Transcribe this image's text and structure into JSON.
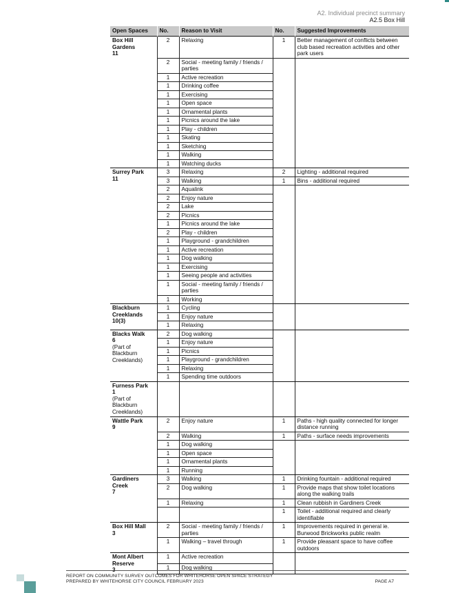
{
  "header": {
    "line1": "A2. Individual precinct summary",
    "line2": "A2.5 Box Hill"
  },
  "columns": [
    "Open Spaces",
    "No.",
    "Reason to Visit",
    "No.",
    "Suggested Improvements"
  ],
  "groups": [
    {
      "name": "Box Hill Gardens",
      "count": "11",
      "sub": "",
      "reasons": [
        [
          "2",
          "Relaxing"
        ],
        [
          "2",
          "Social - meeting family / friends / parties"
        ],
        [
          "1",
          "Active recreation"
        ],
        [
          "1",
          "Drinking coffee"
        ],
        [
          "1",
          "Exercising"
        ],
        [
          "1",
          "Open space"
        ],
        [
          "1",
          "Ornamental plants"
        ],
        [
          "1",
          "Picnics around the lake"
        ],
        [
          "1",
          "Play - children"
        ],
        [
          "1",
          "Skating"
        ],
        [
          "1",
          "Sketching"
        ],
        [
          "1",
          "Walking"
        ],
        [
          "1",
          "Watching ducks"
        ]
      ],
      "improvements": [
        [
          "1",
          "Better management of conflicts between club based recreation activities and other park users"
        ]
      ]
    },
    {
      "name": "Surrey Park",
      "count": "11",
      "sub": "",
      "reasons": [
        [
          "3",
          "Relaxing"
        ],
        [
          "3",
          "Walking"
        ],
        [
          "2",
          "Aqualink"
        ],
        [
          "2",
          "Enjoy nature"
        ],
        [
          "2",
          "Lake"
        ],
        [
          "2",
          "Picnics"
        ],
        [
          "1",
          "Picnics around the lake"
        ],
        [
          "2",
          "Play - children"
        ],
        [
          "1",
          "Playground - grandchildren"
        ],
        [
          "1",
          "Active recreation"
        ],
        [
          "1",
          "Dog walking"
        ],
        [
          "1",
          "Exercising"
        ],
        [
          "1",
          "Seeing people and activities"
        ],
        [
          "1",
          "Social - meeting family / friends / parties"
        ],
        [
          "1",
          "Working"
        ]
      ],
      "improvements": [
        [
          "2",
          "Lighting - additional required"
        ],
        [
          "1",
          "Bins - additional required"
        ]
      ]
    },
    {
      "name": "Blackburn Creeklands",
      "count": "10(3)",
      "sub": "",
      "reasons": [
        [
          "1",
          "Cycling"
        ],
        [
          "1",
          "Enjoy nature"
        ],
        [
          "1",
          "Relaxing"
        ]
      ],
      "improvements": []
    },
    {
      "name": "Blacks Walk",
      "count": "6",
      "sub": "(Part of Blackburn Creeklands)",
      "reasons": [
        [
          "2",
          "Dog walking"
        ],
        [
          "1",
          "Enjoy nature"
        ],
        [
          "1",
          "Picnics"
        ],
        [
          "1",
          "Playground - grandchildren"
        ],
        [
          "1",
          "Relaxing"
        ],
        [
          "1",
          "Spending time outdoors"
        ]
      ],
      "improvements": []
    },
    {
      "name": "Furness Park",
      "count": "1",
      "sub": "(Part of Blackburn Creeklands)",
      "reasons": [],
      "improvements": []
    },
    {
      "name": "Wattle Park",
      "count": "9",
      "sub": "",
      "reasons": [
        [
          "2",
          "Enjoy nature"
        ],
        [
          "2",
          "Walking"
        ],
        [
          "1",
          "Dog walking"
        ],
        [
          "1",
          "Open space"
        ],
        [
          "1",
          "Ornamental plants"
        ],
        [
          "1",
          "Running"
        ]
      ],
      "improvements": [
        [
          "1",
          "Paths - high quality connected for longer distance running"
        ],
        [
          "1",
          "Paths - surface needs improvements"
        ]
      ]
    },
    {
      "name": "Gardiners Creek",
      "count": "7",
      "sub": "",
      "reasons": [
        [
          "3",
          "Walking"
        ],
        [
          "2",
          "Dog walking"
        ],
        [
          "1",
          "Relaxing"
        ]
      ],
      "improvements": [
        [
          "1",
          "Drinking fountain - additional required"
        ],
        [
          "1",
          "Provide maps that show toilet locations along the walking trails"
        ],
        [
          "1",
          "Clean rubbish in Gardiners Creek"
        ],
        [
          "1",
          "Toilet - additional required and clearly identifiable"
        ]
      ]
    },
    {
      "name": "Box Hill Mall",
      "count": "3",
      "sub": "",
      "reasons": [
        [
          "2",
          "Social - meeting family / friends / parties"
        ],
        [
          "1",
          "Walking – travel through"
        ]
      ],
      "improvements": [
        [
          "1",
          "Improvements required in general ie. Burwood Brickworks public realm"
        ],
        [
          "1",
          "Provide pleasant space to have coffee outdoors"
        ]
      ]
    },
    {
      "name": "Mont Albert Reserve",
      "count": "3",
      "sub": "",
      "reasons": [
        [
          "1",
          "Active recreation"
        ],
        [
          "1",
          "Dog walking"
        ]
      ],
      "improvements": []
    }
  ],
  "footer": {
    "line1": "REPORT ON COMMUNITY SURVEY OUTCOMES FOR WHITEHORSE OPEN SPACE STRATEGY",
    "line2": "PREPARED BY WHITEHORSE CITY COUNCIL FEBRUARY 2023",
    "page": "PAGE A7"
  }
}
